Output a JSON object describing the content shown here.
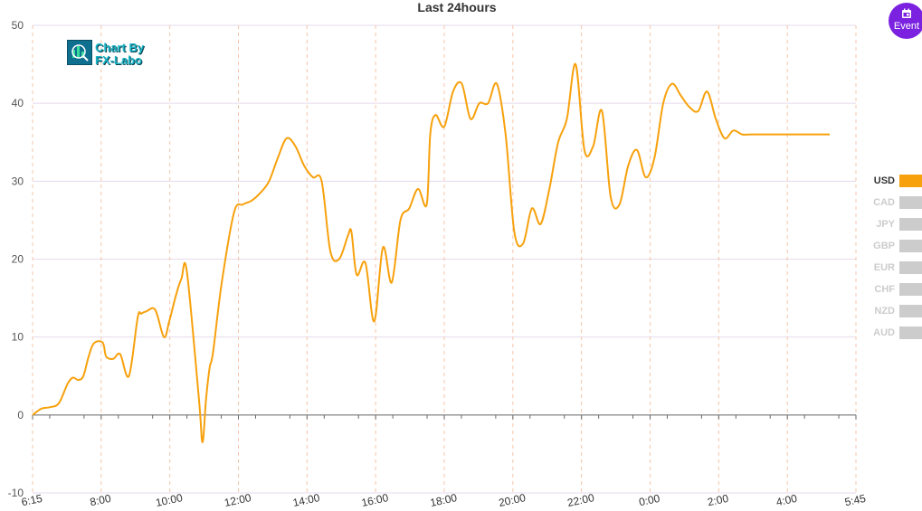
{
  "title": "Last 24hours",
  "logo": {
    "line1": "Chart By",
    "line2": "FX-Labo"
  },
  "event_button": {
    "label": "Event"
  },
  "legend": {
    "items": [
      {
        "label": "USD",
        "color": "#f7a10d",
        "active": true
      },
      {
        "label": "CAD",
        "color": "#cccccc",
        "active": false
      },
      {
        "label": "JPY",
        "color": "#cccccc",
        "active": false
      },
      {
        "label": "GBP",
        "color": "#cccccc",
        "active": false
      },
      {
        "label": "EUR",
        "color": "#cccccc",
        "active": false
      },
      {
        "label": "CHF",
        "color": "#cccccc",
        "active": false
      },
      {
        "label": "NZD",
        "color": "#cccccc",
        "active": false
      },
      {
        "label": "AUD",
        "color": "#cccccc",
        "active": false
      }
    ]
  },
  "chart_data": {
    "type": "line",
    "title": "Last 24hours",
    "xlabel": "",
    "ylabel": "",
    "ylim": [
      -10,
      50
    ],
    "y_ticks": [
      -10,
      0,
      10,
      20,
      30,
      40,
      50
    ],
    "x_ticks": [
      "6:15",
      "8:00",
      "10:00",
      "12:00",
      "14:00",
      "16:00",
      "18:00",
      "20:00",
      "22:00",
      "0:00",
      "2:00",
      "4:00",
      "5:45"
    ],
    "grid": true,
    "legend_position": "right",
    "series": [
      {
        "name": "USD",
        "color": "#f7a10d",
        "x": [
          0,
          0.25,
          0.5,
          0.75,
          1.0,
          1.15,
          1.3,
          1.45,
          1.6,
          1.75,
          2.0,
          2.1,
          2.3,
          2.5,
          2.75,
          3.0,
          3.1,
          3.25,
          3.5,
          3.75,
          3.9,
          4.1,
          4.25,
          4.4,
          4.75,
          4.85,
          4.95,
          5.05,
          5.15,
          5.4,
          5.75,
          6.0,
          6.25,
          6.5,
          6.75,
          7.0,
          7.25,
          7.5,
          7.75,
          8.0,
          8.25,
          8.5,
          8.75,
          9.0,
          9.1,
          9.25,
          9.5,
          9.75,
          10.0,
          10.25,
          10.5,
          10.75,
          11.0,
          11.25,
          11.35,
          11.5,
          11.75,
          12.0,
          12.25,
          12.5,
          12.75,
          13.0,
          13.25,
          13.5,
          13.75,
          14.0,
          14.25,
          14.5,
          14.75,
          15.0,
          15.25,
          15.5,
          15.75,
          16.0,
          16.25,
          16.5,
          16.75,
          17.0,
          17.25,
          17.5,
          17.75,
          18.0,
          18.25,
          18.5,
          18.75,
          19.0,
          19.25,
          19.5,
          19.75,
          20.0,
          20.25,
          20.5,
          20.75,
          21.0,
          21.25,
          21.5,
          21.75,
          22.0,
          22.25,
          22.5,
          22.75,
          23.0,
          23.25,
          23.5
        ],
        "values": [
          0,
          0.8,
          1.0,
          1.5,
          4.0,
          4.8,
          4.5,
          5.0,
          7.5,
          9.2,
          9.3,
          7.5,
          7.2,
          7.8,
          5.0,
          12.5,
          13.0,
          13.3,
          13.5,
          10.0,
          12.0,
          15.5,
          17.5,
          18.5,
          2.0,
          -3.5,
          2.0,
          6.0,
          8.0,
          17.0,
          26.0,
          27.0,
          27.5,
          28.5,
          30.0,
          33.0,
          35.5,
          34.5,
          32.0,
          30.5,
          30.0,
          21.0,
          20.0,
          23.0,
          23.5,
          18.0,
          19.5,
          12.0,
          21.5,
          17.0,
          25.0,
          26.5,
          29.0,
          27.0,
          36.0,
          38.5,
          37.0,
          41.5,
          42.5,
          38.0,
          40.0,
          40.0,
          42.5,
          36.0,
          23.5,
          22.0,
          26.5,
          24.5,
          29.0,
          35.0,
          38.0,
          45.0,
          34.0,
          34.5,
          39.0,
          28.0,
          27.0,
          32.0,
          34.0,
          30.5,
          33.0,
          40.0,
          42.5,
          41.0,
          39.5,
          39.0,
          41.5,
          38.0,
          35.5,
          36.5,
          36.0,
          36.0,
          36.0,
          36.0,
          36.0,
          36.0,
          36.0,
          36.0,
          36.0,
          36.0,
          36.0,
          36.0,
          36.0,
          36.0
        ]
      }
    ]
  }
}
